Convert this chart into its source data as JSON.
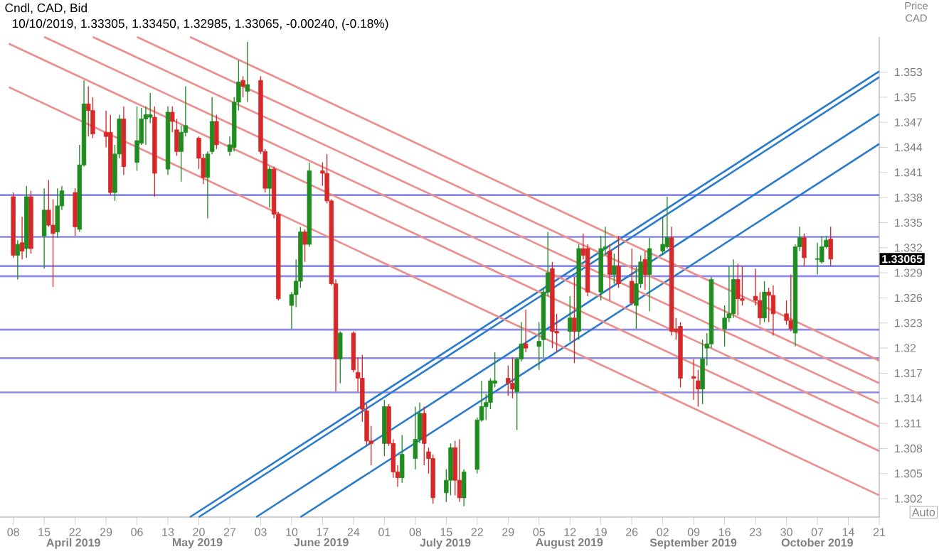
{
  "chart_data": {
    "type": "candlestick",
    "title": "Cndl, CAD, Bid",
    "subtitle": "10/10/2019, 1.33305, 1.33450, 1.32985, 1.33065, -0.00240, (-0.18%)",
    "ylabel": "Price CAD",
    "x": [
      "2019-04-08",
      "2019-04-09",
      "2019-04-10",
      "2019-04-11",
      "2019-04-12",
      "2019-04-15",
      "2019-04-16",
      "2019-04-17",
      "2019-04-18",
      "2019-04-19",
      "2019-04-22",
      "2019-04-23",
      "2019-04-24",
      "2019-04-25",
      "2019-04-26",
      "2019-04-29",
      "2019-04-30",
      "2019-05-01",
      "2019-05-02",
      "2019-05-03",
      "2019-05-06",
      "2019-05-07",
      "2019-05-08",
      "2019-05-09",
      "2019-05-10",
      "2019-05-13",
      "2019-05-14",
      "2019-05-15",
      "2019-05-16",
      "2019-05-17",
      "2019-05-20",
      "2019-05-21",
      "2019-05-22",
      "2019-05-23",
      "2019-05-24",
      "2019-05-27",
      "2019-05-28",
      "2019-05-29",
      "2019-05-30",
      "2019-05-31",
      "2019-06-03",
      "2019-06-04",
      "2019-06-05",
      "2019-06-06",
      "2019-06-07",
      "2019-06-10",
      "2019-06-11",
      "2019-06-12",
      "2019-06-13",
      "2019-06-14",
      "2019-06-17",
      "2019-06-18",
      "2019-06-19",
      "2019-06-20",
      "2019-06-21",
      "2019-06-24",
      "2019-06-25",
      "2019-06-26",
      "2019-06-27",
      "2019-06-28",
      "2019-07-01",
      "2019-07-02",
      "2019-07-03",
      "2019-07-04",
      "2019-07-05",
      "2019-07-08",
      "2019-07-09",
      "2019-07-10",
      "2019-07-11",
      "2019-07-12",
      "2019-07-15",
      "2019-07-16",
      "2019-07-17",
      "2019-07-18",
      "2019-07-19",
      "2019-07-22",
      "2019-07-23",
      "2019-07-24",
      "2019-07-25",
      "2019-07-26",
      "2019-07-29",
      "2019-07-30",
      "2019-07-31",
      "2019-08-01",
      "2019-08-02",
      "2019-08-05",
      "2019-08-06",
      "2019-08-07",
      "2019-08-08",
      "2019-08-09",
      "2019-08-12",
      "2019-08-13",
      "2019-08-14",
      "2019-08-15",
      "2019-08-16",
      "2019-08-19",
      "2019-08-20",
      "2019-08-21",
      "2019-08-22",
      "2019-08-23",
      "2019-08-26",
      "2019-08-27",
      "2019-08-28",
      "2019-08-29",
      "2019-08-30",
      "2019-09-02",
      "2019-09-03",
      "2019-09-04",
      "2019-09-05",
      "2019-09-06",
      "2019-09-09",
      "2019-09-10",
      "2019-09-11",
      "2019-09-12",
      "2019-09-13",
      "2019-09-16",
      "2019-09-17",
      "2019-09-18",
      "2019-09-19",
      "2019-09-20",
      "2019-09-23",
      "2019-09-24",
      "2019-09-25",
      "2019-09-26",
      "2019-09-27",
      "2019-09-30",
      "2019-10-01",
      "2019-10-02",
      "2019-10-03",
      "2019-10-04",
      "2019-10-07",
      "2019-10-08",
      "2019-10-09",
      "2019-10-10"
    ],
    "ohlc": [
      [
        1.3381,
        1.3386,
        1.3308,
        1.3311
      ],
      [
        1.3311,
        1.3329,
        1.3282,
        1.3324
      ],
      [
        1.3326,
        1.3357,
        1.3306,
        1.3316
      ],
      [
        1.3319,
        1.3394,
        1.3308,
        1.3381
      ],
      [
        1.3381,
        1.3388,
        1.3313,
        1.3319
      ],
      [
        1.3334,
        1.3391,
        1.3295,
        1.3365
      ],
      [
        1.3365,
        1.3401,
        1.3345,
        1.3347
      ],
      [
        1.3347,
        1.3378,
        1.3273,
        1.3337
      ],
      [
        1.3339,
        1.3391,
        1.3332,
        1.337
      ],
      [
        1.337,
        1.3394,
        1.3365,
        1.3388
      ],
      [
        1.3386,
        1.3391,
        1.3334,
        1.3345
      ],
      [
        1.3342,
        1.3443,
        1.3339,
        1.3419
      ],
      [
        1.3419,
        1.352,
        1.3417,
        1.3492
      ],
      [
        1.3492,
        1.3513,
        1.3453,
        1.3484
      ],
      [
        1.3484,
        1.35,
        1.3451,
        1.3456
      ],
      [
        1.3458,
        1.3484,
        1.344,
        1.3453
      ],
      [
        1.3458,
        1.3479,
        1.3383,
        1.3386
      ],
      [
        1.3386,
        1.3443,
        1.3376,
        1.3432
      ],
      [
        1.3432,
        1.3479,
        1.3427,
        1.3474
      ],
      [
        1.3474,
        1.3489,
        1.3407,
        1.3417
      ],
      [
        1.3422,
        1.3489,
        1.3412,
        1.3448
      ],
      [
        1.3445,
        1.3487,
        1.3443,
        1.3474
      ],
      [
        1.3474,
        1.3489,
        1.3443,
        1.3479
      ],
      [
        1.3476,
        1.3505,
        1.3469,
        1.3479
      ],
      [
        1.3476,
        1.3489,
        1.3381,
        1.3409
      ],
      [
        1.3414,
        1.3489,
        1.3407,
        1.3482
      ],
      [
        1.3482,
        1.3489,
        1.3458,
        1.3471
      ],
      [
        1.3461,
        1.3474,
        1.343,
        1.3435
      ],
      [
        1.3435,
        1.3466,
        1.3399,
        1.3458
      ],
      [
        1.3458,
        1.3513,
        1.3453,
        1.3466
      ],
      [
        1.3451,
        1.3453,
        1.3414,
        1.3427
      ],
      [
        1.3427,
        1.3432,
        1.3396,
        1.3404
      ],
      [
        1.3404,
        1.3435,
        1.3355,
        1.3432
      ],
      [
        1.3435,
        1.35,
        1.3432,
        1.3471
      ],
      [
        1.3471,
        1.3479,
        1.3438,
        1.3443
      ],
      [
        1.3435,
        1.3453,
        1.343,
        1.3443
      ],
      [
        1.344,
        1.35,
        1.3435,
        1.3494
      ],
      [
        1.3494,
        1.3544,
        1.3484,
        1.3518
      ],
      [
        1.352,
        1.3525,
        1.35,
        1.3513
      ],
      [
        1.3507,
        1.3566,
        1.3494,
        1.3515
      ],
      [
        1.352,
        1.3525,
        1.3432,
        1.3435
      ],
      [
        1.3435,
        1.3438,
        1.3386,
        1.3391
      ],
      [
        1.3391,
        1.3417,
        1.3368,
        1.3414
      ],
      [
        1.3414,
        1.3417,
        1.3355,
        1.336
      ],
      [
        1.336,
        1.3363,
        1.3257,
        1.3259
      ],
      [
        1.3251,
        1.3267,
        1.3223,
        1.3264
      ],
      [
        1.3264,
        1.3306,
        1.3249,
        1.328
      ],
      [
        1.328,
        1.3345,
        1.3272,
        1.3339
      ],
      [
        1.3339,
        1.3342,
        1.3303,
        1.3324
      ],
      [
        1.3324,
        1.3422,
        1.3321,
        1.3412
      ],
      [
        1.3412,
        1.3422,
        1.3394,
        1.3409
      ],
      [
        1.3409,
        1.3432,
        1.3373,
        1.3376
      ],
      [
        1.3376,
        1.3378,
        1.3275,
        1.3277
      ],
      [
        1.3277,
        1.3282,
        1.3148,
        1.3187
      ],
      [
        1.3187,
        1.322,
        1.3158,
        1.3218
      ],
      [
        1.3218,
        1.322,
        1.3171,
        1.3174
      ],
      [
        1.3171,
        1.3189,
        1.3148,
        1.3164
      ],
      [
        1.3164,
        1.3192,
        1.3112,
        1.3127
      ],
      [
        1.3125,
        1.3133,
        1.3083,
        1.3089
      ],
      [
        1.3089,
        1.3107,
        1.306,
        1.3086
      ],
      [
        1.3086,
        1.3138,
        1.3071,
        1.313
      ],
      [
        1.313,
        1.3133,
        1.3083,
        1.3086
      ],
      [
        1.3086,
        1.3091,
        1.3045,
        1.3052
      ],
      [
        1.3052,
        1.306,
        1.3034,
        1.3045
      ],
      [
        1.3045,
        1.3096,
        1.3039,
        1.3073
      ],
      [
        1.3068,
        1.313,
        1.3055,
        1.3091
      ],
      [
        1.3091,
        1.3135,
        1.3086,
        1.3122
      ],
      [
        1.3122,
        1.313,
        1.306,
        1.3086
      ],
      [
        1.3076,
        1.3081,
        1.305,
        1.3068
      ],
      [
        1.3068,
        1.3073,
        1.3014,
        1.3021
      ],
      [
        1.3027,
        1.3055,
        1.3016,
        1.3042
      ],
      [
        1.3042,
        1.3086,
        1.3024,
        1.3081
      ],
      [
        1.3081,
        1.3089,
        1.3024,
        1.3042
      ],
      [
        1.3042,
        1.3091,
        1.3016,
        1.3021
      ],
      [
        1.3021,
        1.3055,
        1.3011,
        1.3052
      ],
      [
        1.3055,
        1.3117,
        1.305,
        1.3114
      ],
      [
        1.3114,
        1.3161,
        1.3112,
        1.313
      ],
      [
        1.313,
        1.3145,
        1.3114,
        1.3135
      ],
      [
        1.3135,
        1.3164,
        1.3127,
        1.3161
      ],
      [
        1.3158,
        1.3195,
        1.3153,
        1.3161
      ],
      [
        1.3164,
        1.3179,
        1.3143,
        1.3158
      ],
      [
        1.3158,
        1.3189,
        1.314,
        1.3151
      ],
      [
        1.3148,
        1.3189,
        1.3102,
        1.3187
      ],
      [
        1.3187,
        1.3231,
        1.3184,
        1.3205
      ],
      [
        1.3205,
        1.3246,
        1.3195,
        1.32
      ],
      [
        1.3202,
        1.3231,
        1.3174,
        1.3208
      ],
      [
        1.321,
        1.3272,
        1.3189,
        1.3267
      ],
      [
        1.3267,
        1.3339,
        1.3262,
        1.329
      ],
      [
        1.3295,
        1.3303,
        1.32,
        1.322
      ],
      [
        1.322,
        1.3241,
        1.3195,
        1.3218
      ],
      [
        1.322,
        1.3262,
        1.3208,
        1.3236
      ],
      [
        1.3236,
        1.3285,
        1.3182,
        1.322
      ],
      [
        1.322,
        1.3324,
        1.321,
        1.3319
      ],
      [
        1.3319,
        1.3337,
        1.3306,
        1.3311
      ],
      [
        1.3319,
        1.3324,
        1.3262,
        1.3267
      ],
      [
        1.3267,
        1.3334,
        1.3257,
        1.3319
      ],
      [
        1.3319,
        1.3345,
        1.3311,
        1.3321
      ],
      [
        1.3316,
        1.3324,
        1.3257,
        1.3288
      ],
      [
        1.3288,
        1.3313,
        1.3277,
        1.3298
      ],
      [
        1.3298,
        1.3334,
        1.3272,
        1.3277
      ],
      [
        1.328,
        1.3319,
        1.3251,
        1.3254
      ],
      [
        1.3251,
        1.3298,
        1.3223,
        1.3277
      ],
      [
        1.3277,
        1.3311,
        1.3272,
        1.3303
      ],
      [
        1.3306,
        1.3316,
        1.327,
        1.3288
      ],
      [
        1.3288,
        1.3332,
        1.3244,
        1.3319
      ],
      [
        1.3316,
        1.3357,
        1.3311,
        1.3324
      ],
      [
        1.3321,
        1.3381,
        1.3319,
        1.3332
      ],
      [
        1.3332,
        1.3345,
        1.3215,
        1.322
      ],
      [
        1.3223,
        1.3236,
        1.321,
        1.322
      ],
      [
        1.3226,
        1.3231,
        1.3153,
        1.3164
      ],
      [
        1.3166,
        1.3187,
        1.3138,
        1.3164
      ],
      [
        1.3161,
        1.3174,
        1.313,
        1.3151
      ],
      [
        1.3151,
        1.321,
        1.3133,
        1.3187
      ],
      [
        1.32,
        1.3218,
        1.3179,
        1.3205
      ],
      [
        1.3205,
        1.3285,
        1.32,
        1.3282
      ],
      [
        1.3223,
        1.3251,
        1.3202,
        1.3236
      ],
      [
        1.3236,
        1.3298,
        1.3231,
        1.3241
      ],
      [
        1.3241,
        1.3306,
        1.3236,
        1.3282
      ],
      [
        1.3282,
        1.3301,
        1.3239,
        1.3259
      ],
      [
        1.3259,
        1.3298,
        1.3251,
        1.3257
      ],
      [
        1.3262,
        1.3295,
        1.3251,
        1.3257
      ],
      [
        1.3257,
        1.3267,
        1.3228,
        1.3236
      ],
      [
        1.3236,
        1.328,
        1.3231,
        1.3267
      ],
      [
        1.3267,
        1.3272,
        1.3231,
        1.3263
      ],
      [
        1.3263,
        1.3275,
        1.3215,
        1.3241
      ],
      [
        1.3241,
        1.3257,
        1.3228,
        1.3233
      ],
      [
        1.3233,
        1.3288,
        1.322,
        1.3223
      ],
      [
        1.3218,
        1.3324,
        1.3202,
        1.3321
      ],
      [
        1.3321,
        1.3345,
        1.3316,
        1.3332
      ],
      [
        1.3332,
        1.3337,
        1.3298,
        1.3308
      ],
      [
        1.3306,
        1.3326,
        1.3288,
        1.3307
      ],
      [
        1.3303,
        1.3334,
        1.3301,
        1.3321
      ],
      [
        1.3321,
        1.3334,
        1.3319,
        1.3329
      ],
      [
        1.33305,
        1.3345,
        1.32985,
        1.33065
      ]
    ],
    "colors": [
      "#d62828",
      "#1e8c1e",
      "#d62828",
      "#1e8c1e",
      "#d62828",
      "#1e8c1e",
      "#d62828",
      "#d62828",
      "#1e8c1e",
      "#1e8c1e",
      "#d62828",
      "#1e8c1e",
      "#1e8c1e",
      "#d62828",
      "#d62828",
      "#d62828",
      "#d62828",
      "#1e8c1e",
      "#1e8c1e",
      "#d62828",
      "#1e8c1e",
      "#1e8c1e",
      "#1e8c1e",
      "#1e8c1e",
      "#d62828",
      "#1e8c1e",
      "#d62828",
      "#d62828",
      "#1e8c1e",
      "#1e8c1e",
      "#d62828",
      "#d62828",
      "#1e8c1e",
      "#1e8c1e",
      "#d62828",
      "#1e8c1e",
      "#1e8c1e",
      "#1e8c1e",
      "#d62828",
      "#1e8c1e",
      "#d62828",
      "#d62828",
      "#1e8c1e",
      "#d62828",
      "#d62828",
      "#1e8c1e",
      "#1e8c1e",
      "#1e8c1e",
      "#d62828",
      "#1e8c1e",
      "#d62828",
      "#d62828",
      "#d62828",
      "#d62828",
      "#1e8c1e",
      "#d62828",
      "#d62828",
      "#d62828",
      "#d62828",
      "#d62828",
      "#1e8c1e",
      "#d62828",
      "#d62828",
      "#d62828",
      "#1e8c1e",
      "#1e8c1e",
      "#1e8c1e",
      "#d62828",
      "#d62828",
      "#d62828",
      "#1e8c1e",
      "#1e8c1e",
      "#d62828",
      "#d62828",
      "#1e8c1e",
      "#1e8c1e",
      "#1e8c1e",
      "#1e8c1e",
      "#1e8c1e",
      "#1e8c1e",
      "#d62828",
      "#d62828",
      "#1e8c1e",
      "#1e8c1e",
      "#d62828",
      "#1e8c1e",
      "#1e8c1e",
      "#1e8c1e",
      "#d62828",
      "#d62828",
      "#1e8c1e",
      "#d62828",
      "#1e8c1e",
      "#d62828",
      "#d62828",
      "#1e8c1e",
      "#1e8c1e",
      "#d62828",
      "#1e8c1e",
      "#d62828",
      "#d62828",
      "#1e8c1e",
      "#1e8c1e",
      "#d62828",
      "#1e8c1e",
      "#1e8c1e",
      "#1e8c1e",
      "#d62828",
      "#d62828",
      "#d62828",
      "#d62828",
      "#d62828",
      "#1e8c1e",
      "#1e8c1e",
      "#1e8c1e",
      "#1e8c1e",
      "#1e8c1e",
      "#1e8c1e",
      "#d62828",
      "#d62828",
      "#d62828",
      "#d62828",
      "#1e8c1e",
      "#d62828",
      "#d62828",
      "#d62828",
      "#d62828",
      "#1e8c1e",
      "#1e8c1e",
      "#d62828",
      "#1e8c1e",
      "#1e8c1e",
      "#1e8c1e",
      "#d62828"
    ],
    "series": [
      {
        "type": "line",
        "color": "#2b7bcc",
        "x": [
          "2019-05-18",
          "2019-10-21"
        ],
        "values": [
          1.2998,
          1.3531
        ]
      },
      {
        "type": "line",
        "color": "#2b7bcc",
        "x": [
          "2019-05-20",
          "2019-10-21"
        ],
        "values": [
          1.2998,
          1.3524
        ]
      },
      {
        "type": "line",
        "color": "#2b7bcc",
        "x": [
          "2019-06-02",
          "2019-10-21"
        ],
        "values": [
          1.2998,
          1.348
        ]
      },
      {
        "type": "line",
        "color": "#2b7bcc",
        "x": [
          "2019-06-12",
          "2019-10-21"
        ],
        "values": [
          1.2998,
          1.3444
        ]
      },
      {
        "type": "line",
        "color": "#eb8f8f",
        "x": [
          "2019-05-18",
          "2019-10-21"
        ],
        "values": [
          1.3572,
          1.3185
        ]
      },
      {
        "type": "line",
        "color": "#eb8f8f",
        "x": [
          "2019-05-06",
          "2019-10-21"
        ],
        "values": [
          1.3572,
          1.3158
        ]
      },
      {
        "type": "line",
        "color": "#eb8f8f",
        "x": [
          "2019-04-26",
          "2019-10-21"
        ],
        "values": [
          1.3572,
          1.3134
        ]
      },
      {
        "type": "line",
        "color": "#eb8f8f",
        "x": [
          "2019-04-15",
          "2019-10-21"
        ],
        "values": [
          1.3572,
          1.3106
        ]
      },
      {
        "type": "line",
        "color": "#eb8f8f",
        "x": [
          "2019-04-07",
          "2019-10-21"
        ],
        "values": [
          1.3564,
          1.3077
        ]
      },
      {
        "type": "line",
        "color": "#eb8f8f",
        "x": [
          "2019-04-07",
          "2019-10-21"
        ],
        "values": [
          1.3512,
          1.3024
        ]
      }
    ],
    "ref_lines": [
      {
        "axis": "y",
        "value": 1.3383,
        "color": "#8a8ae6"
      },
      {
        "axis": "y",
        "value": 1.3333,
        "color": "#8a8ae6"
      },
      {
        "axis": "y",
        "value": 1.3298,
        "color": "#8a8ae6"
      },
      {
        "axis": "y",
        "value": 1.3286,
        "color": "#8a8ae6"
      },
      {
        "axis": "y",
        "value": 1.3222,
        "color": "#8a8ae6"
      },
      {
        "axis": "y",
        "value": 1.3188,
        "color": "#8a8ae6"
      },
      {
        "axis": "y",
        "value": 1.3147,
        "color": "#8a8ae6"
      }
    ],
    "xlim": [
      "2019-04-05",
      "2019-10-21"
    ],
    "ylim": [
      1.2998,
      1.3572
    ],
    "xticks": [
      {
        "value": "2019-04-08",
        "label": "08"
      },
      {
        "value": "2019-04-15",
        "label": "15"
      },
      {
        "value": "2019-04-22",
        "label": "22"
      },
      {
        "value": "2019-04-29",
        "label": "29"
      },
      {
        "value": "2019-05-06",
        "label": "06"
      },
      {
        "value": "2019-05-13",
        "label": "13"
      },
      {
        "value": "2019-05-20",
        "label": "20"
      },
      {
        "value": "2019-05-27",
        "label": "27"
      },
      {
        "value": "2019-06-03",
        "label": "03"
      },
      {
        "value": "2019-06-10",
        "label": "10"
      },
      {
        "value": "2019-06-17",
        "label": "17"
      },
      {
        "value": "2019-06-24",
        "label": "24"
      },
      {
        "value": "2019-07-01",
        "label": "01"
      },
      {
        "value": "2019-07-08",
        "label": "08"
      },
      {
        "value": "2019-07-15",
        "label": "15"
      },
      {
        "value": "2019-07-22",
        "label": "22"
      },
      {
        "value": "2019-07-29",
        "label": "29"
      },
      {
        "value": "2019-08-05",
        "label": "05"
      },
      {
        "value": "2019-08-12",
        "label": "12"
      },
      {
        "value": "2019-08-19",
        "label": "19"
      },
      {
        "value": "2019-08-26",
        "label": "26"
      },
      {
        "value": "2019-09-02",
        "label": "02"
      },
      {
        "value": "2019-09-09",
        "label": "09"
      },
      {
        "value": "2019-09-16",
        "label": "16"
      },
      {
        "value": "2019-09-23",
        "label": "23"
      },
      {
        "value": "2019-09-30",
        "label": "30"
      },
      {
        "value": "2019-10-07",
        "label": "07"
      },
      {
        "value": "2019-10-14",
        "label": "14"
      },
      {
        "value": "2019-10-21",
        "label": "21"
      }
    ],
    "yticks": [
      1.302,
      1.305,
      1.308,
      1.311,
      1.314,
      1.317,
      1.32,
      1.323,
      1.326,
      1.329,
      1.332,
      1.335,
      1.338,
      1.341,
      1.344,
      1.347,
      1.35,
      1.353
    ],
    "annotations": [
      "1.33065",
      "April 2019",
      "May 2019",
      "June 2019",
      "July 2019",
      "August 2019",
      "September 2019",
      "October 2019",
      "Auto"
    ]
  }
}
